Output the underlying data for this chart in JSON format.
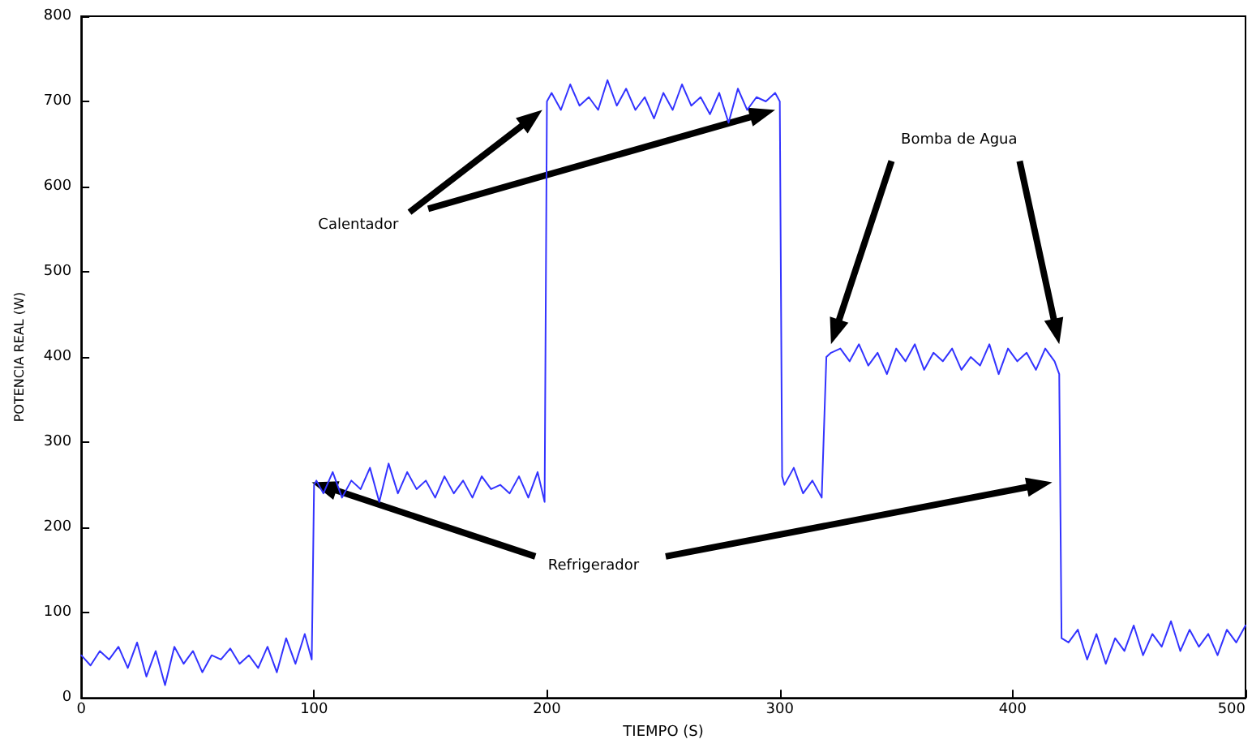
{
  "chart_data": {
    "type": "line",
    "xlabel": "TIEMPO (S)",
    "ylabel": "POTENCIA REAL (W)",
    "annotations": [
      "Calentador",
      "Bomba de Agua",
      "Refrigerador"
    ],
    "xlim": [
      0,
      500
    ],
    "xticks": [
      0,
      100,
      200,
      300,
      400,
      500
    ],
    "ylim": [
      0,
      800
    ],
    "yticks": [
      0,
      100,
      200,
      300,
      400,
      500,
      600,
      700,
      800
    ],
    "grid": false,
    "marker": "none",
    "line_style": "solid",
    "series": [
      {
        "color": "#3333ff",
        "x": [
          0,
          4,
          8,
          12,
          16,
          20,
          24,
          28,
          32,
          36,
          40,
          44,
          48,
          52,
          56,
          60,
          64,
          68,
          72,
          76,
          80,
          84,
          88,
          92,
          96,
          99,
          100,
          101,
          104,
          108,
          112,
          116,
          120,
          124,
          128,
          132,
          136,
          140,
          144,
          148,
          152,
          156,
          160,
          164,
          168,
          172,
          176,
          180,
          184,
          188,
          192,
          196,
          199,
          200,
          202,
          206,
          210,
          214,
          218,
          222,
          226,
          230,
          234,
          238,
          242,
          246,
          250,
          254,
          258,
          262,
          266,
          270,
          274,
          278,
          282,
          286,
          290,
          294,
          298,
          300,
          301,
          302,
          306,
          310,
          314,
          318,
          320,
          322,
          326,
          330,
          334,
          338,
          342,
          346,
          350,
          354,
          358,
          362,
          366,
          370,
          374,
          378,
          382,
          386,
          390,
          394,
          398,
          402,
          406,
          410,
          414,
          418,
          420,
          421,
          424,
          428,
          432,
          436,
          440,
          444,
          448,
          452,
          456,
          460,
          464,
          468,
          472,
          476,
          480,
          484,
          488,
          492,
          496,
          500
        ],
        "values": [
          50,
          38,
          55,
          45,
          60,
          35,
          65,
          25,
          55,
          15,
          60,
          40,
          55,
          30,
          50,
          45,
          58,
          40,
          50,
          35,
          60,
          30,
          70,
          40,
          75,
          45,
          250,
          255,
          240,
          265,
          235,
          255,
          245,
          270,
          230,
          275,
          240,
          265,
          245,
          255,
          235,
          260,
          240,
          255,
          235,
          260,
          245,
          250,
          240,
          260,
          235,
          265,
          230,
          700,
          710,
          690,
          720,
          695,
          705,
          690,
          725,
          695,
          715,
          690,
          705,
          680,
          710,
          690,
          720,
          695,
          705,
          685,
          710,
          675,
          715,
          690,
          705,
          700,
          710,
          700,
          260,
          250,
          270,
          240,
          255,
          235,
          400,
          405,
          410,
          395,
          415,
          390,
          405,
          380,
          410,
          395,
          415,
          385,
          405,
          395,
          410,
          385,
          400,
          390,
          415,
          380,
          410,
          395,
          405,
          385,
          410,
          395,
          380,
          70,
          65,
          80,
          45,
          75,
          40,
          70,
          55,
          85,
          50,
          75,
          60,
          90,
          55,
          80,
          60,
          75,
          50,
          80,
          65,
          85
        ]
      }
    ]
  }
}
